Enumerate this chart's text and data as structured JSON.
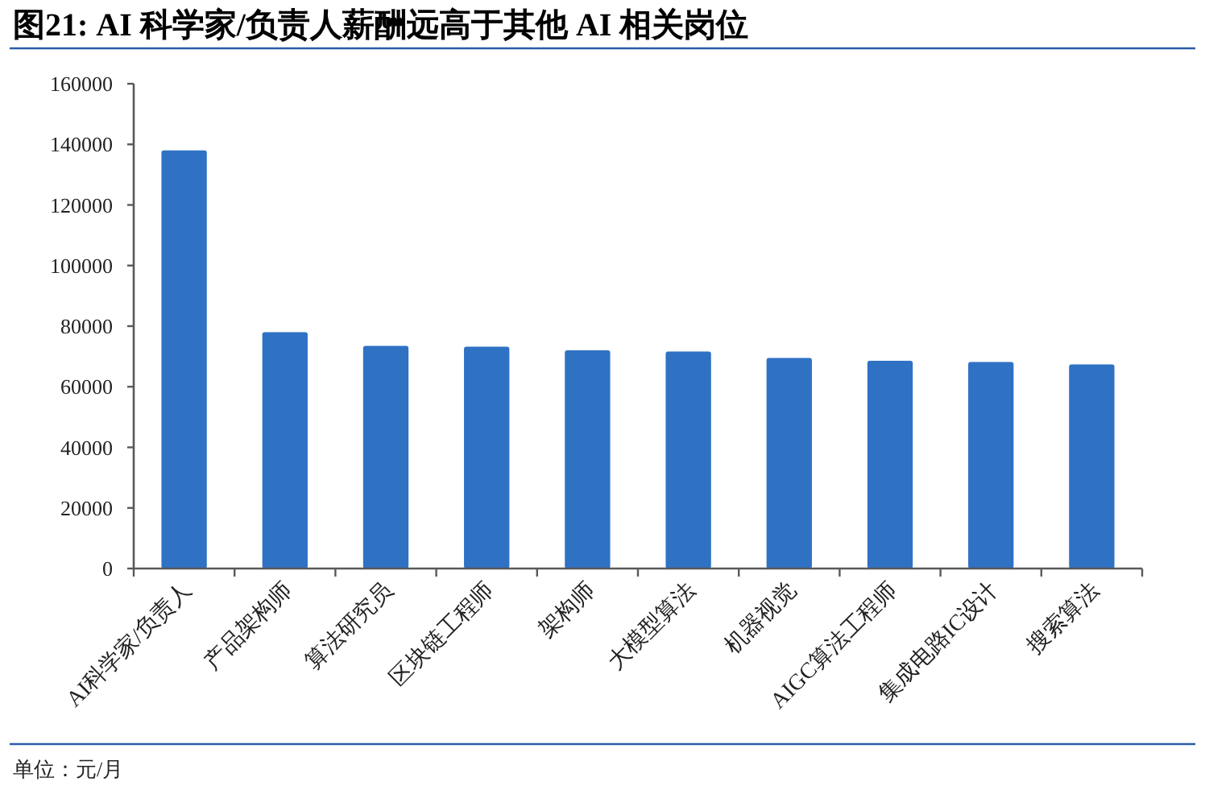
{
  "chart_data": {
    "type": "bar",
    "title": "图21: AI 科学家/负责人薪酬远高于其他 AI 相关岗位",
    "categories": [
      "AI科学家/负责人",
      "产品架构师",
      "算法研究员",
      "区块链工程师",
      "架构师",
      "大模型算法",
      "机器视觉",
      "AIGC算法工程师",
      "集成电路IC设计",
      "搜索算法"
    ],
    "values": [
      138000,
      78000,
      73500,
      73200,
      72000,
      71600,
      69500,
      68600,
      68200,
      67400
    ],
    "color": "#2f72c4",
    "ylim": [
      0,
      160000
    ],
    "yticks": [
      0,
      20000,
      40000,
      60000,
      80000,
      100000,
      120000,
      140000,
      160000
    ],
    "grid": false,
    "annotations": [
      "单位：元/月"
    ]
  }
}
